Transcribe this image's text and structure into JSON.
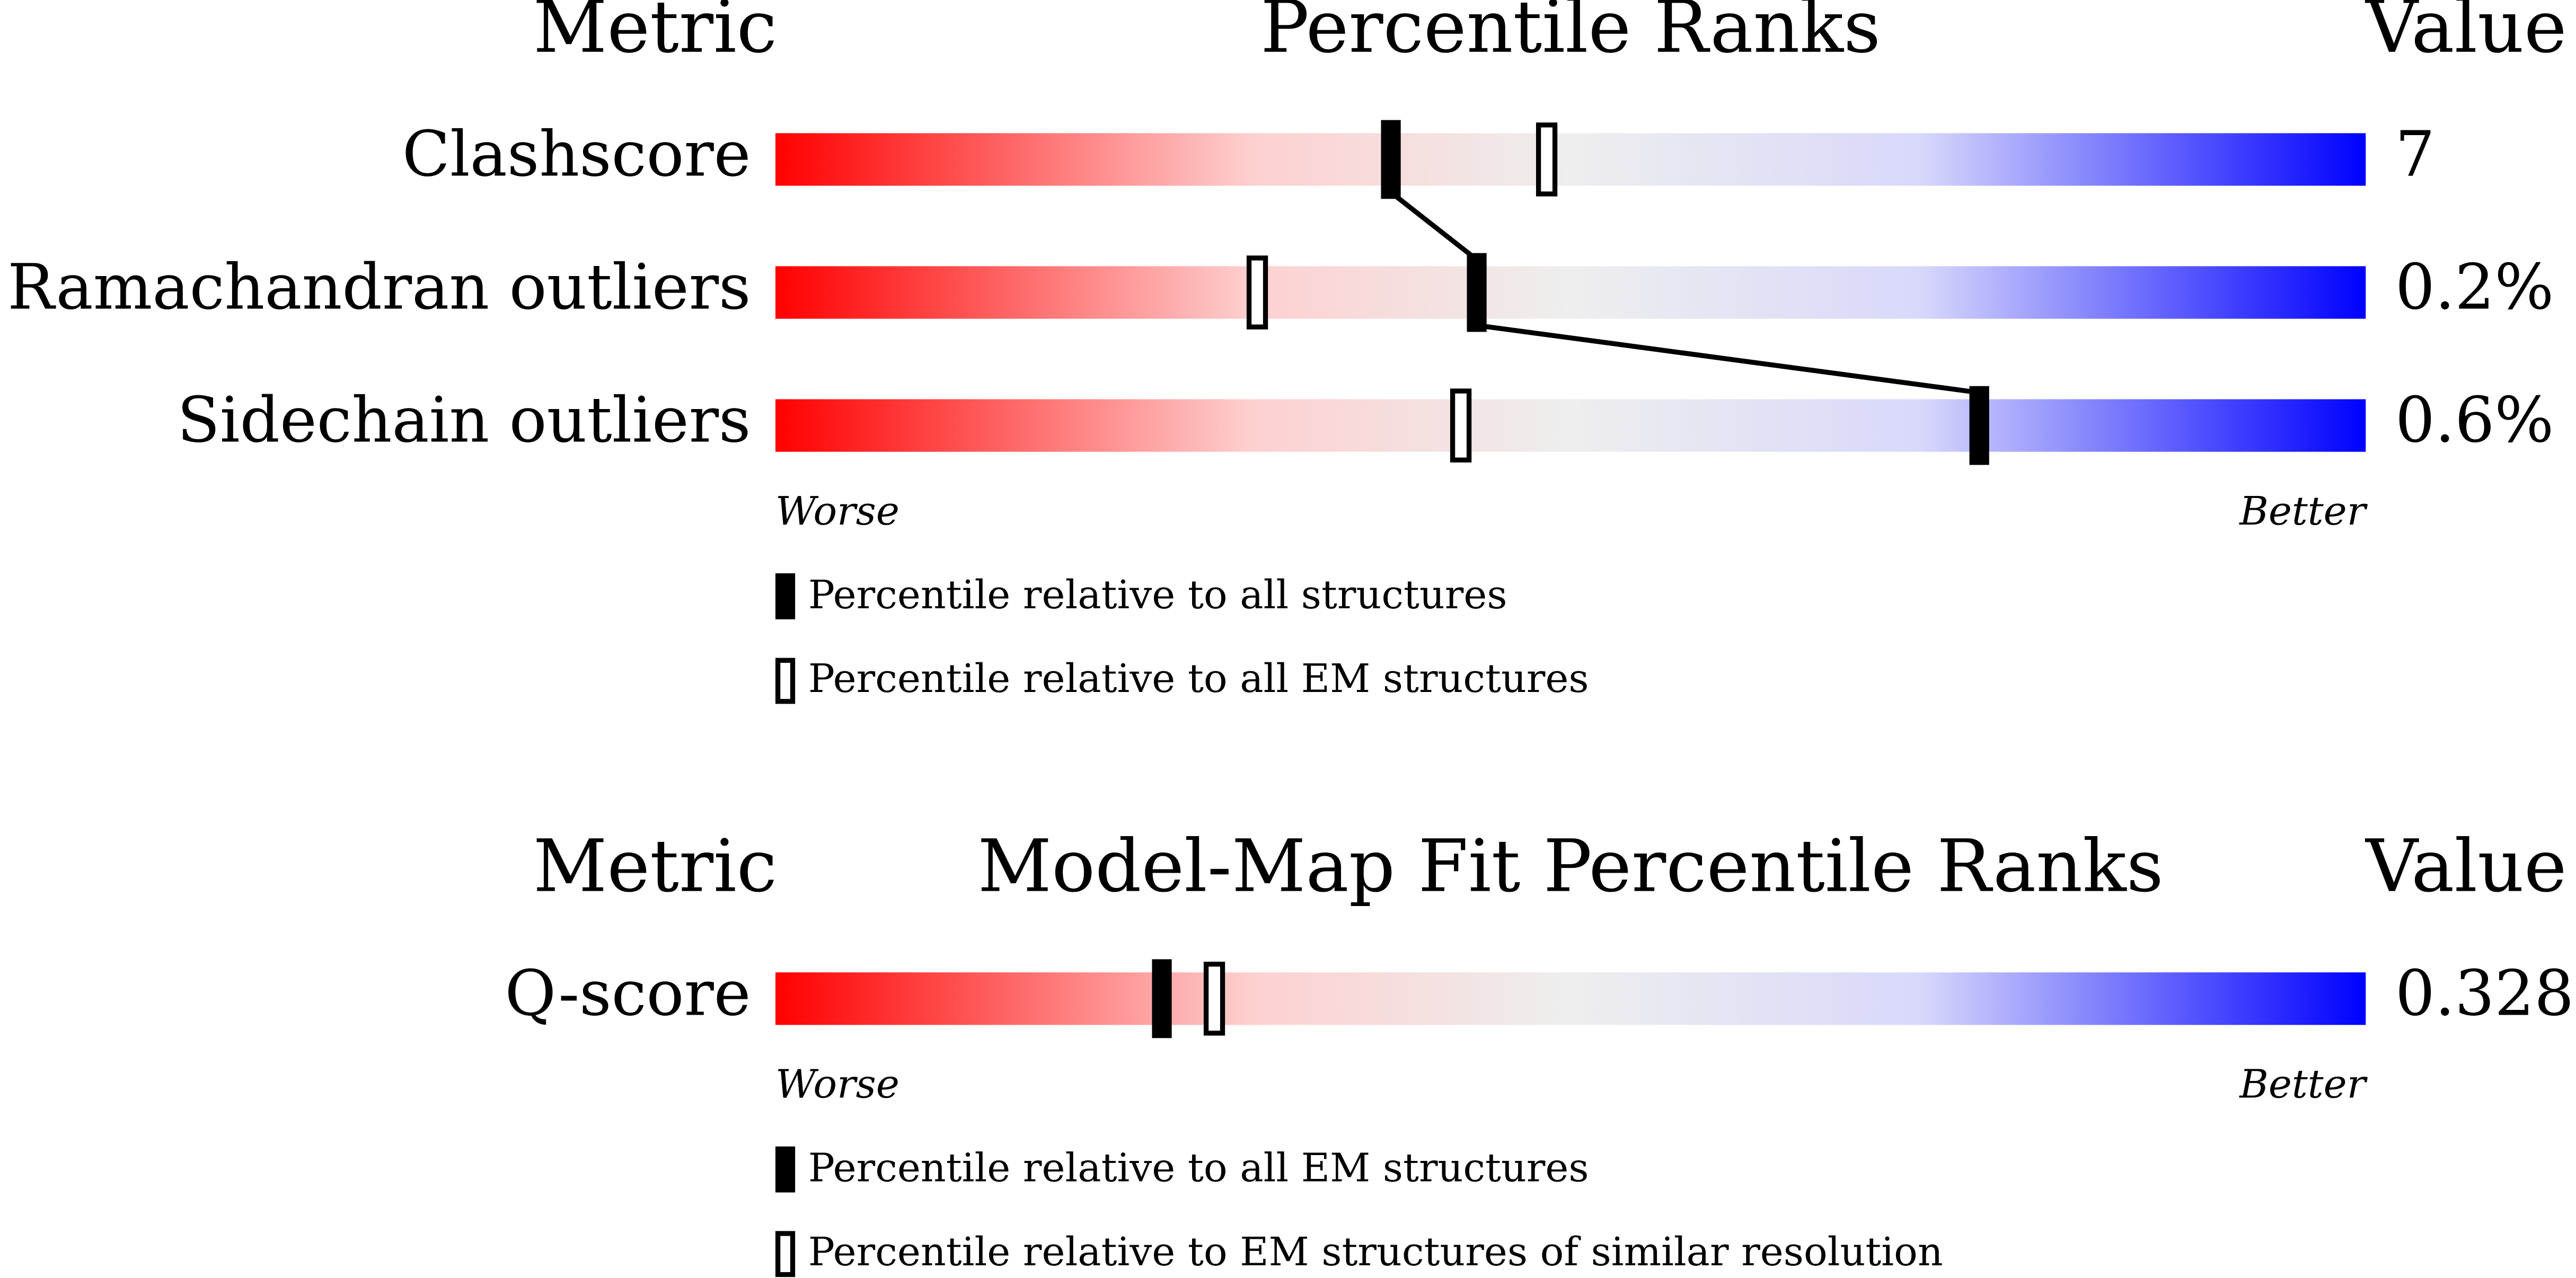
{
  "panels": [
    {
      "headers": {
        "metric": "Metric",
        "title": "Percentile Ranks",
        "value": "Value"
      },
      "xlim": [
        0,
        100
      ],
      "rows": [
        {
          "metric": "Clashscore",
          "value": "7",
          "filled": 38.7,
          "open": 48.5
        },
        {
          "metric": "Ramachandran outliers",
          "value": "0.2%",
          "filled": 44.1,
          "open": 30.3
        },
        {
          "metric": "Sidechain outliers",
          "value": "0.6%",
          "filled": 75.7,
          "open": 43.1
        }
      ],
      "worse": "Worse",
      "better": "Better",
      "legend": {
        "filled": "Percentile relative to all structures",
        "open": "Percentile relative to all EM structures"
      }
    },
    {
      "headers": {
        "metric": "Metric",
        "title": "Model-Map Fit Percentile Ranks",
        "value": "Value"
      },
      "xlim": [
        0,
        100
      ],
      "rows": [
        {
          "metric": "Q-score",
          "value": "0.328",
          "filled": 24.3,
          "open": 27.6
        }
      ],
      "worse": "Worse",
      "better": "Better",
      "legend": {
        "filled": "Percentile relative to all EM structures",
        "open": "Percentile relative to EM structures of similar resolution"
      }
    }
  ]
}
